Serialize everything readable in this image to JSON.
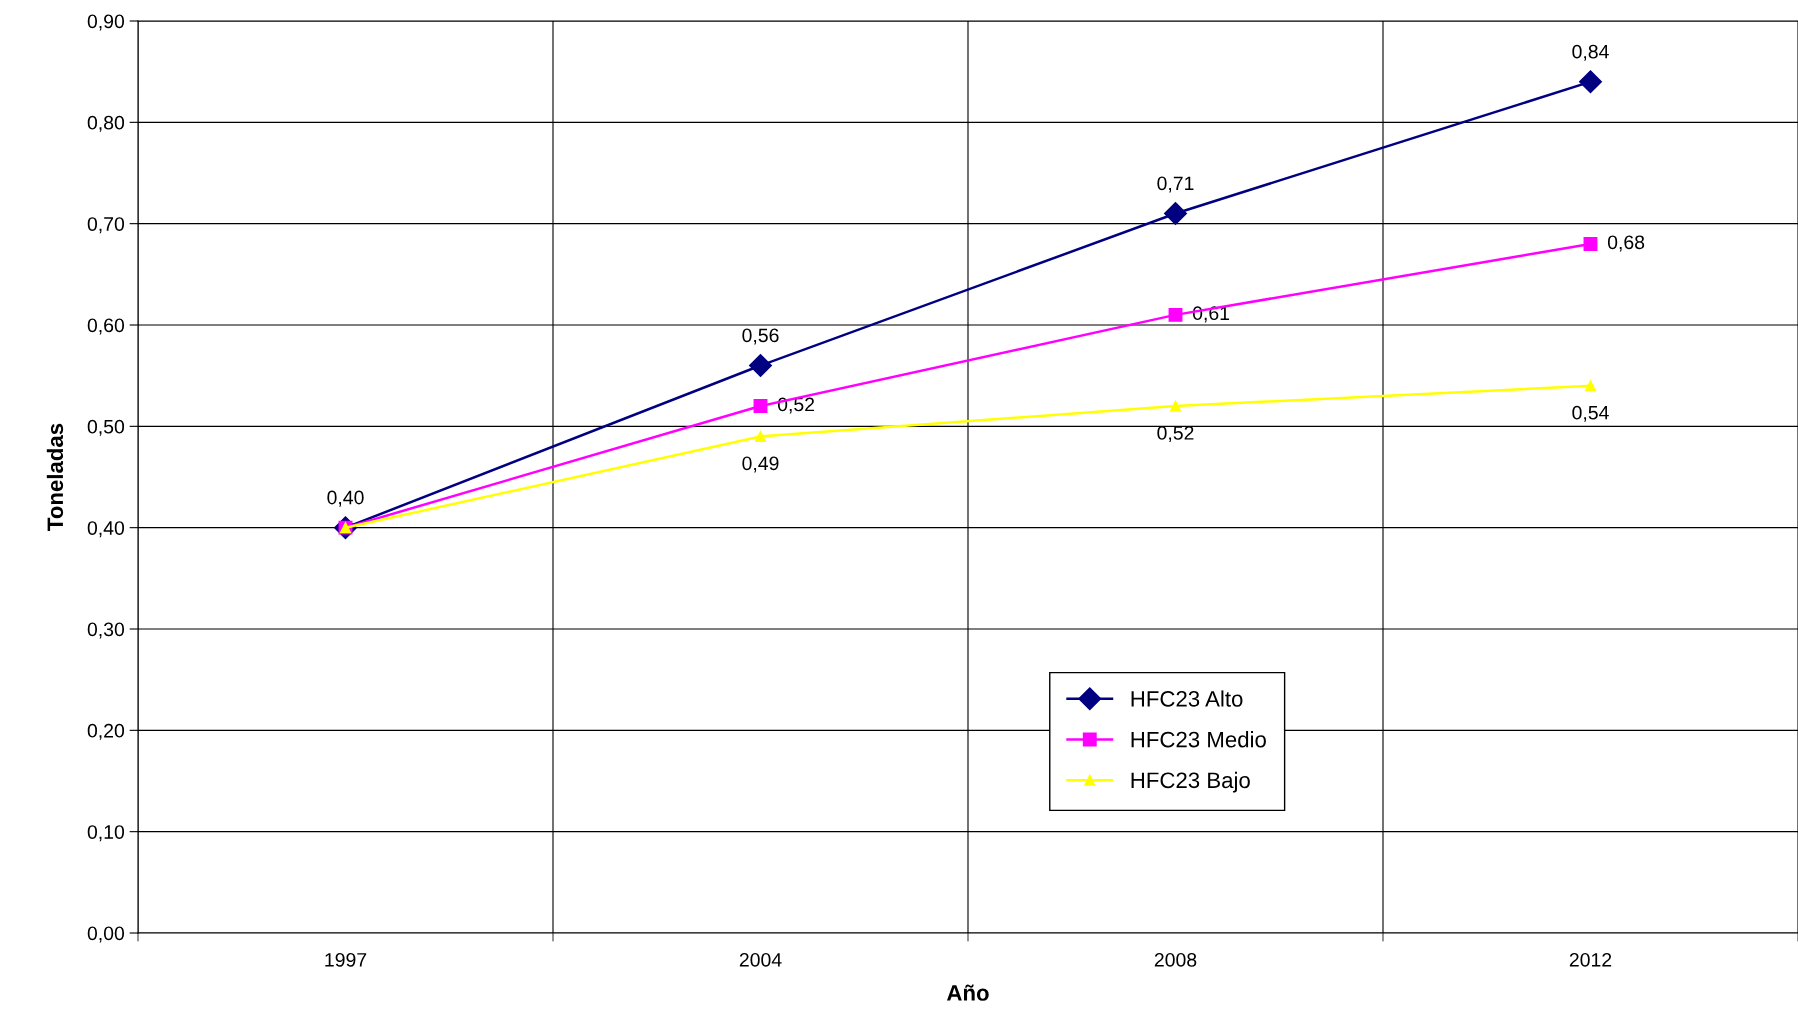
{
  "chart_data": {
    "type": "line",
    "xlabel": "Año",
    "ylabel": "Toneladas",
    "categories": [
      "1997",
      "2004",
      "2008",
      "2012"
    ],
    "series": [
      {
        "name": "HFC23 Alto",
        "color": "#000080",
        "marker": "diamond",
        "values": [
          0.4,
          0.56,
          0.71,
          0.84
        ],
        "value_labels": [
          "0,40",
          "0,56",
          "0,71",
          "0,84"
        ]
      },
      {
        "name": "HFC23 Medio",
        "color": "#ff00ff",
        "marker": "square",
        "values": [
          0.4,
          0.52,
          0.61,
          0.68
        ],
        "value_labels": [
          null,
          "0,52",
          "0,61",
          "0,68"
        ]
      },
      {
        "name": "HFC23 Bajo",
        "color": "#ffff00",
        "marker": "triangle",
        "values": [
          0.4,
          0.49,
          0.52,
          0.54
        ],
        "value_labels": [
          null,
          "0,49",
          "0,52",
          "0,54"
        ]
      }
    ],
    "ylim": [
      0,
      0.9
    ],
    "yticks": [
      {
        "value": 0,
        "label": "0,00"
      },
      {
        "value": 0.1,
        "label": "0,10"
      },
      {
        "value": 0.2,
        "label": "0,20"
      },
      {
        "value": 0.3,
        "label": "0,30"
      },
      {
        "value": 0.4,
        "label": "0,40"
      },
      {
        "value": 0.5,
        "label": "0,50"
      },
      {
        "value": 0.6,
        "label": "0,60"
      },
      {
        "value": 0.7,
        "label": "0,70"
      },
      {
        "value": 0.8,
        "label": "0,80"
      },
      {
        "value": 0.9,
        "label": "0,90"
      }
    ],
    "grid": true,
    "legend": "bottom",
    "line_style": "solid"
  }
}
